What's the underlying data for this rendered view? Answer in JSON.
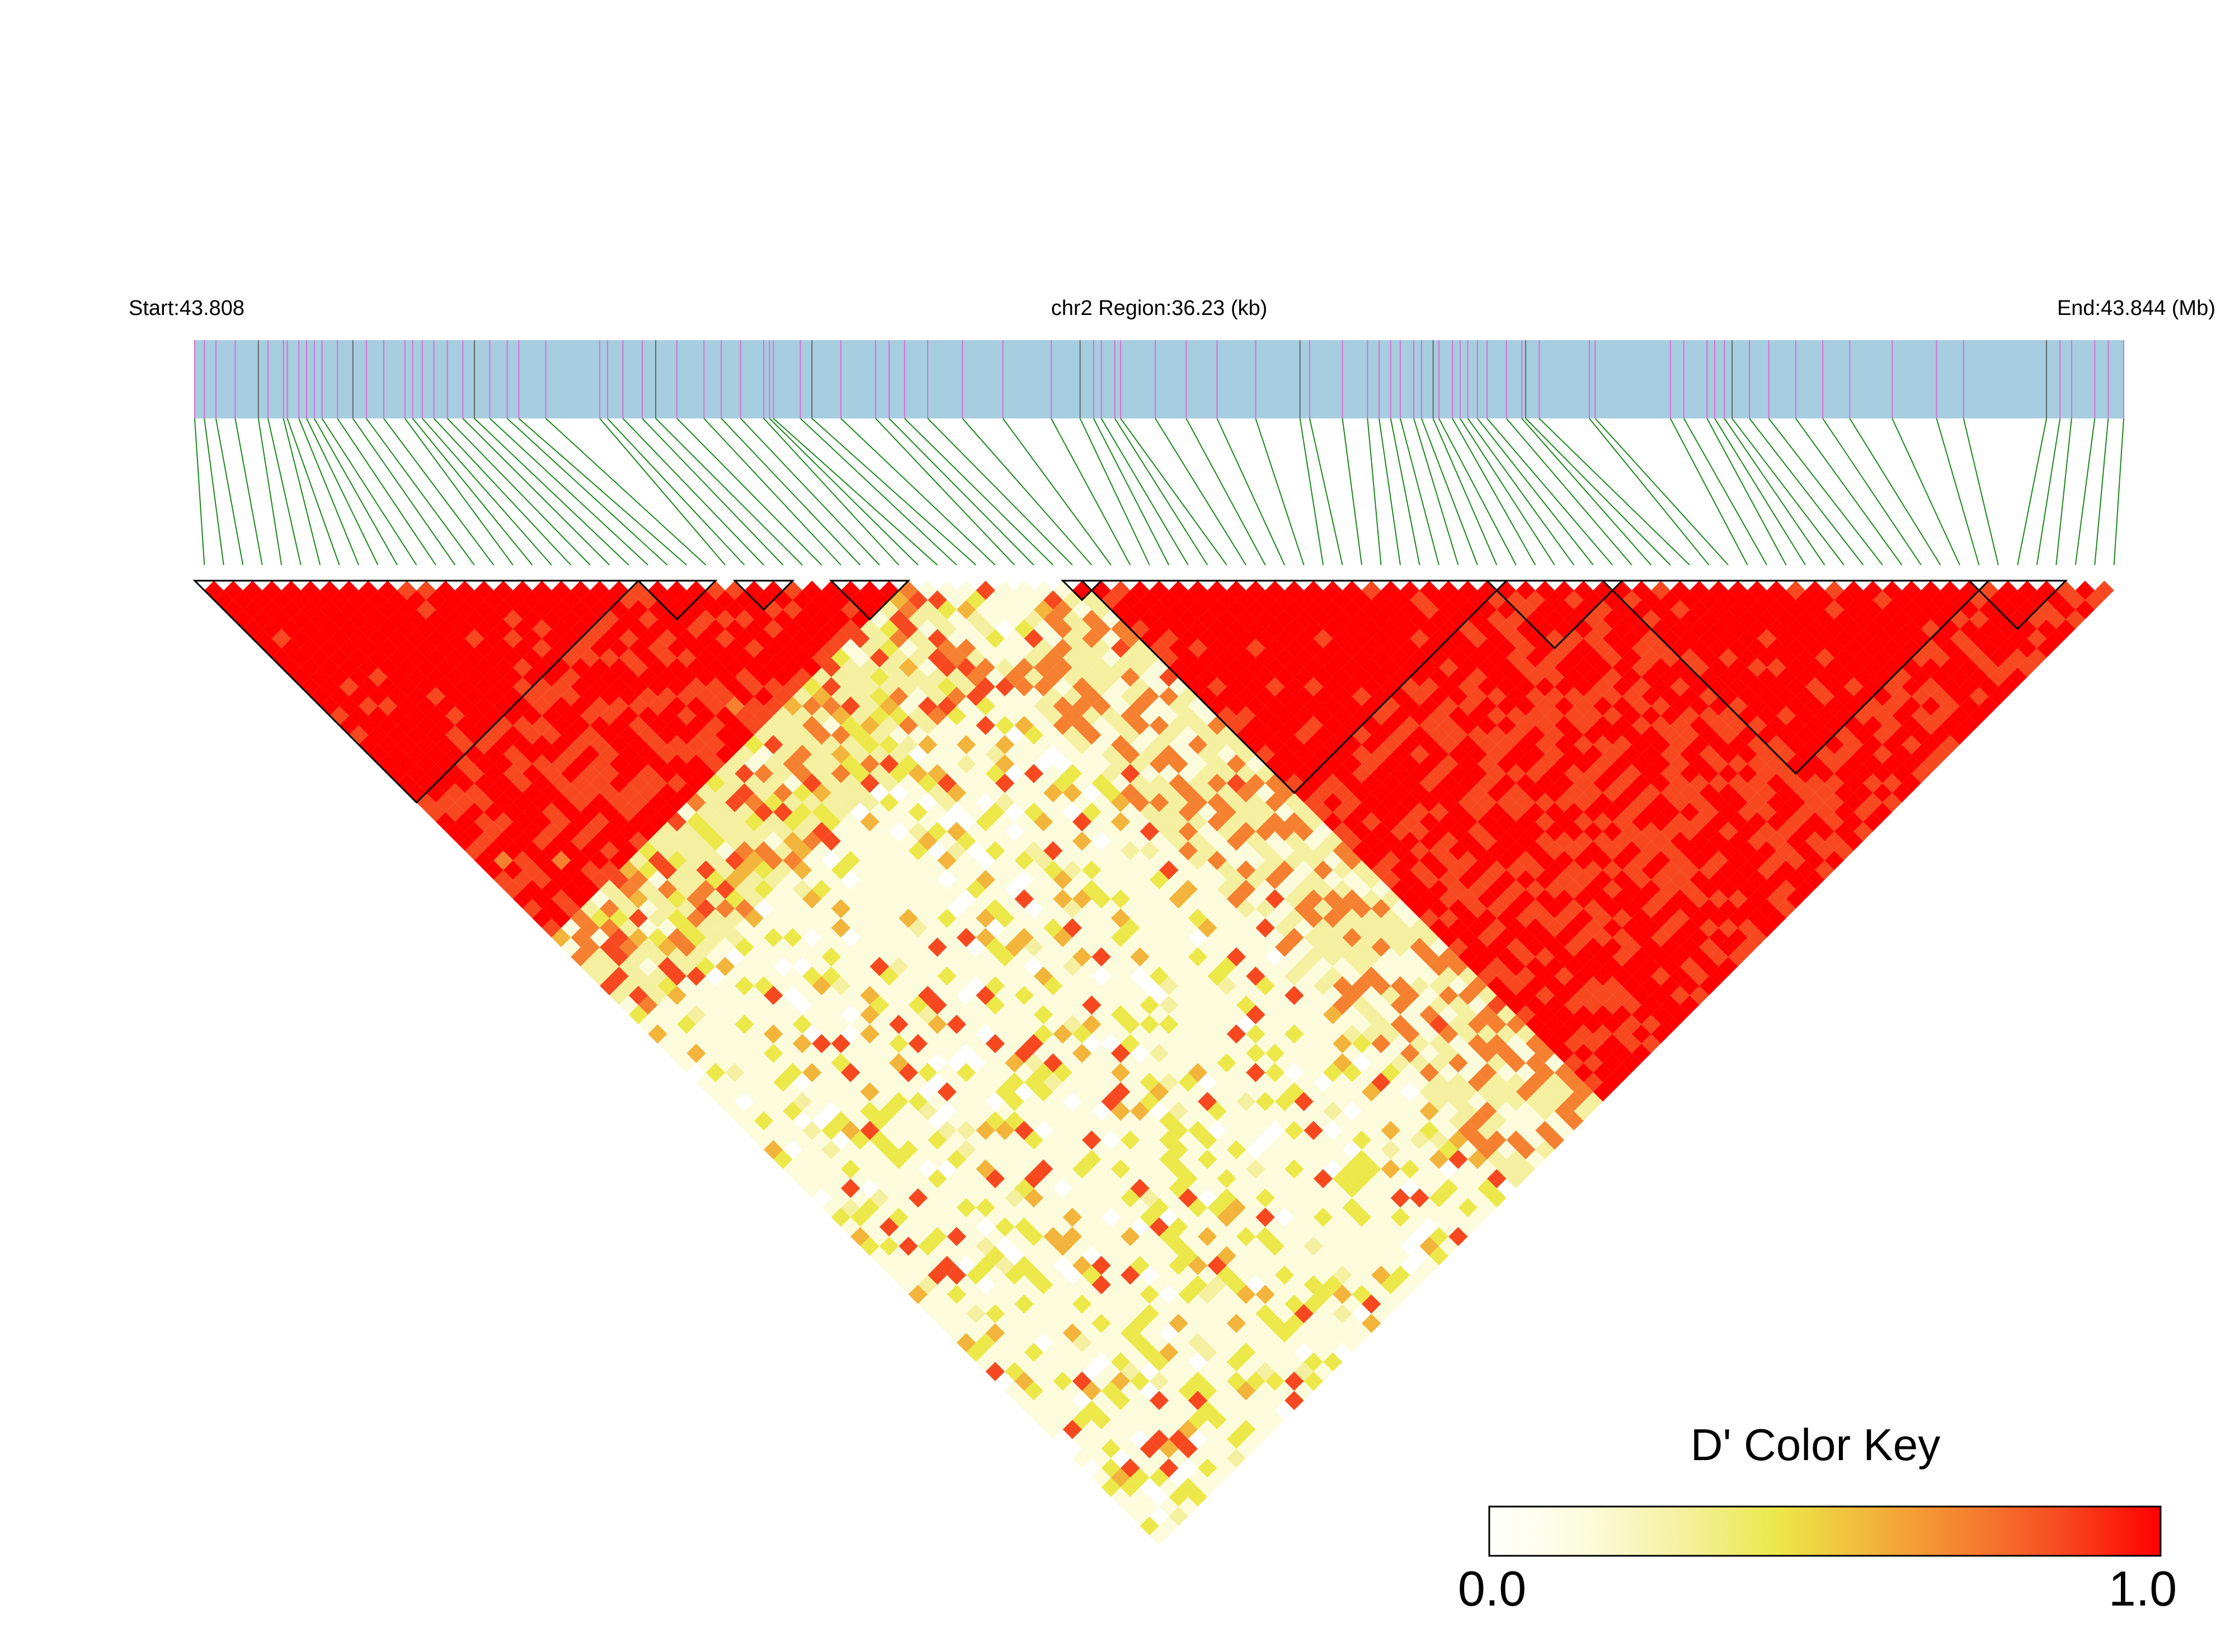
{
  "chart_data": {
    "type": "heatmap",
    "subtype": "LD triangle (pairwise linkage disequilibrium)",
    "metric": "D'",
    "header": {
      "start_label": "Start:43.808",
      "region_label": "chr2 Region:36.23 (kb)",
      "end_label": "End:43.844 (Mb)"
    },
    "region": {
      "chromosome": "chr2",
      "start_mb": 43.808,
      "end_mb": 43.844,
      "length_kb": 36.23
    },
    "snp_count": 100,
    "snp_positions_note": "relative positions of SNP ticks on the gene track, 0 = start, 1 = end",
    "snp_positions": [
      0.0,
      0.005,
      0.011,
      0.021,
      0.033,
      0.038,
      0.046,
      0.048,
      0.054,
      0.058,
      0.062,
      0.066,
      0.074,
      0.082,
      0.089,
      0.098,
      0.109,
      0.113,
      0.118,
      0.124,
      0.131,
      0.139,
      0.145,
      0.153,
      0.162,
      0.168,
      0.182,
      0.21,
      0.214,
      0.222,
      0.232,
      0.239,
      0.25,
      0.264,
      0.273,
      0.283,
      0.295,
      0.298,
      0.3,
      0.314,
      0.32,
      0.335,
      0.353,
      0.36,
      0.368,
      0.38,
      0.398,
      0.419,
      0.444,
      0.459,
      0.466,
      0.47,
      0.477,
      0.48,
      0.498,
      0.514,
      0.53,
      0.55,
      0.573,
      0.578,
      0.595,
      0.608,
      0.614,
      0.62,
      0.625,
      0.632,
      0.636,
      0.642,
      0.645,
      0.652,
      0.656,
      0.66,
      0.665,
      0.67,
      0.68,
      0.688,
      0.69,
      0.697,
      0.723,
      0.726,
      0.765,
      0.772,
      0.784,
      0.788,
      0.793,
      0.797,
      0.806,
      0.816,
      0.83,
      0.844,
      0.858,
      0.88,
      0.903,
      0.917,
      0.96,
      0.967,
      0.973,
      0.985,
      0.992,
      1.0
    ],
    "blocks": [
      {
        "from_snp": 1,
        "to_snp": 23
      },
      {
        "from_snp": 24,
        "to_snp": 27
      },
      {
        "from_snp": 29,
        "to_snp": 31
      },
      {
        "from_snp": 34,
        "to_snp": 37
      },
      {
        "from_snp": 46,
        "to_snp": 47
      },
      {
        "from_snp": 47,
        "to_snp": 68
      },
      {
        "from_snp": 68,
        "to_snp": 74
      },
      {
        "from_snp": 74,
        "to_snp": 93
      },
      {
        "from_snp": 93,
        "to_snp": 97
      }
    ],
    "color_key": {
      "title": "D' Color Key",
      "min": 0.0,
      "max": 1.0,
      "min_label": "0.0",
      "max_label": "1.0",
      "colors": [
        "#ffffff",
        "#fcfcdc",
        "#f5f0a0",
        "#ece84a",
        "#f2b43a",
        "#f58030",
        "#f74820",
        "#ff0000"
      ]
    },
    "colors": {
      "gene_track": "#a6cde0",
      "snp_tick_on_track": "#d96fd2",
      "snp_connector": "#1a8a1a",
      "block_outline": "#000000"
    }
  }
}
